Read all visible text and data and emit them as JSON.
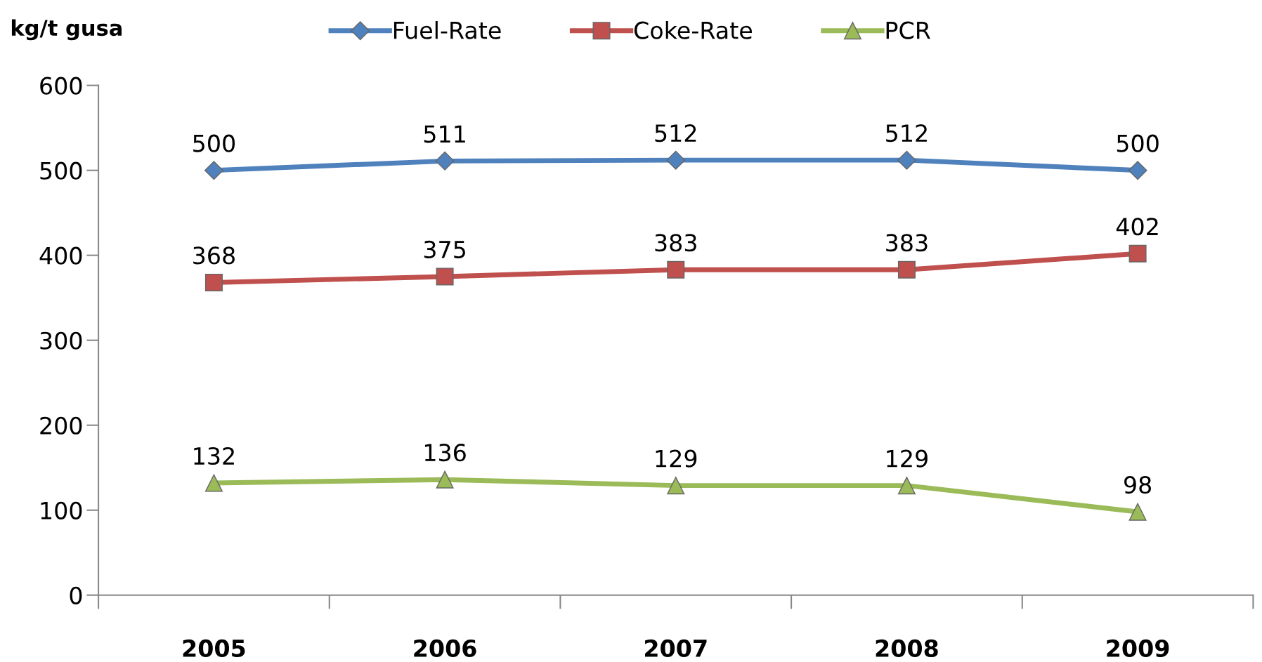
{
  "chart_data": {
    "type": "line",
    "ylabel": "kg/t gusa",
    "categories": [
      "2005",
      "2006",
      "2007",
      "2008",
      "2009"
    ],
    "series": [
      {
        "name": "Fuel-Rate",
        "color": "#4f81bd",
        "marker": "diamond",
        "values": [
          500,
          511,
          512,
          512,
          500
        ]
      },
      {
        "name": "Coke-Rate",
        "color": "#c0504d",
        "marker": "square",
        "values": [
          368,
          375,
          383,
          383,
          402
        ]
      },
      {
        "name": "PCR",
        "color": "#9bbb59",
        "marker": "triangle",
        "values": [
          132,
          136,
          129,
          129,
          98
        ]
      }
    ],
    "ylim": [
      0,
      600
    ],
    "yticks": [
      0,
      100,
      200,
      300,
      400,
      500,
      600
    ],
    "grid": false,
    "legend": "top",
    "data_labels": true
  }
}
